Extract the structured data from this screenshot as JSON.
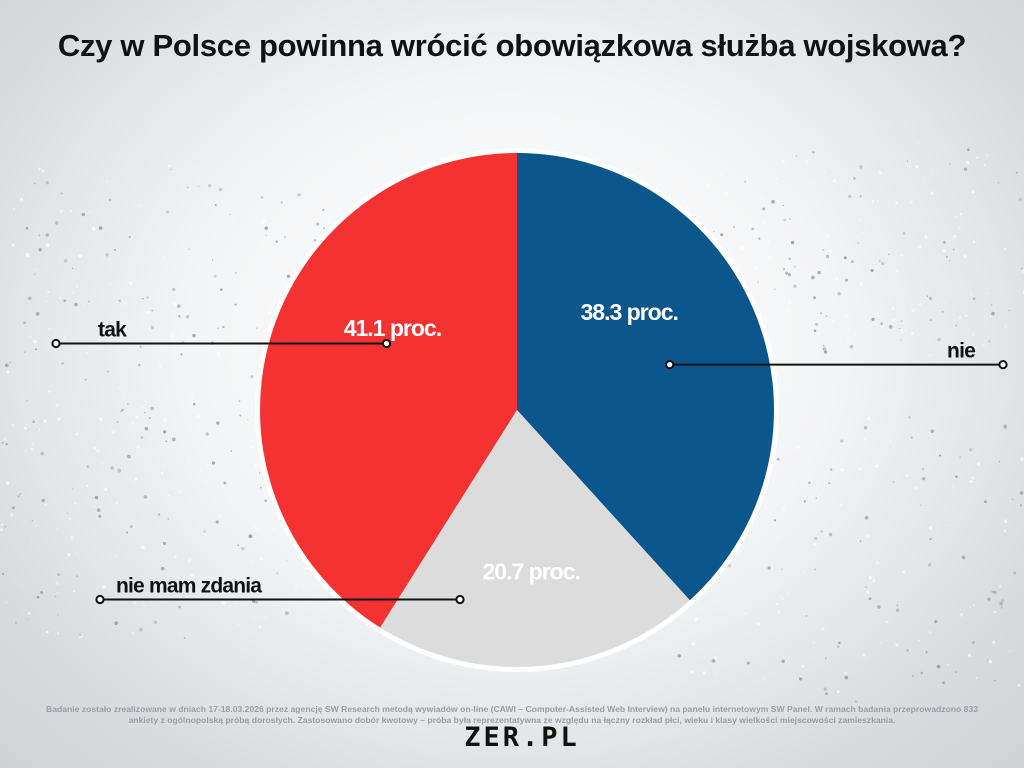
{
  "title": "Czy w Polsce powinna wrócić obowiązkowa służba wojskowa?",
  "chart_data": {
    "type": "pie",
    "title": "Czy w Polsce powinna wrócić obowiązkowa służba wojskowa?",
    "start_angle_deg": 0,
    "slices": [
      {
        "label": "nie",
        "value": 38.3,
        "display": "38.3 proc.",
        "color": "#0b568c",
        "label_color": "#ffffff"
      },
      {
        "label": "nie mam zdania",
        "value": 20.7,
        "display": "20.7 proc.",
        "color": "#dcdcdc",
        "label_color": "#ffffff"
      },
      {
        "label": "tak",
        "value": 41.1,
        "display": "41.1 proc.",
        "color": "#f53232",
        "label_color": "#ffffff"
      }
    ],
    "legend": "callout lines"
  },
  "footnote": "Badanie zostało zrealizowane w dniach 17-18.03.2026 przez agencję SW Research metodą wywiadów on-line (CAWI – Computer-Assisted Web Interview) na panelu internetowym SW Panel. W ramach badania przeprowadzono 833 ankiety z ogólnopolską próbą dorosłych. Zastosowano dobór kwotowy – próba była reprezentatywna ze względu na łączny rozkład płci, wieku i klasy wielkości miejscowości zamieszkania.",
  "logo": {
    "part1": "ZER",
    "part2": ".PL",
    "accent": "#e8242b"
  }
}
